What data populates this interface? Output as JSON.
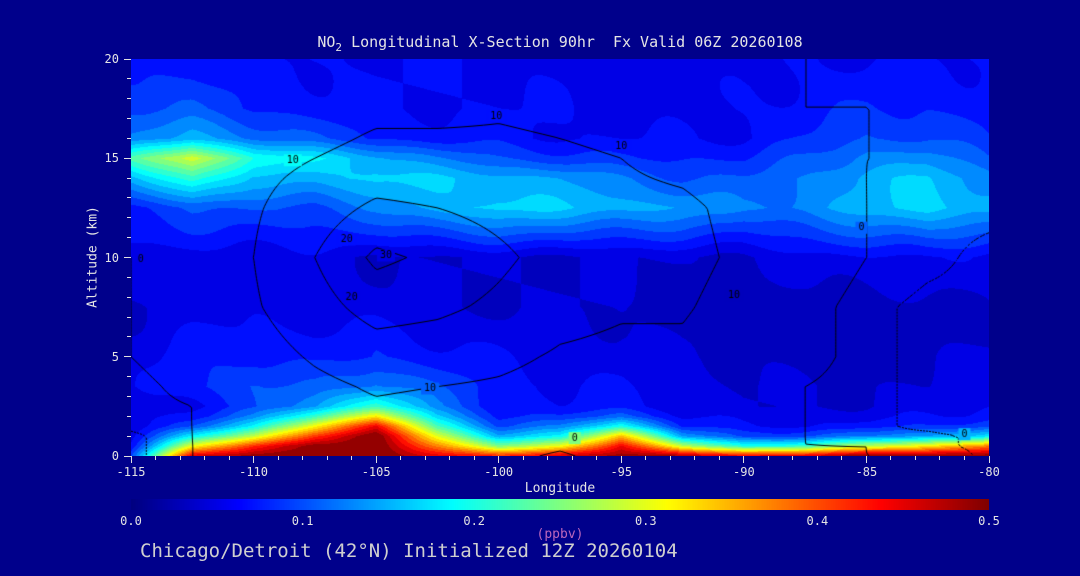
{
  "title": {
    "prefix": "NO",
    "sub": "2",
    "rest": " Longitudinal X-Section 90hr  Fx Valid 06Z 20260108",
    "full": "NO2 Longitudinal X-Section 90hr Fx Valid 06Z 20260108"
  },
  "footer": {
    "text": "Chicago/Detroit (42°N) Initialized 12Z 20260104"
  },
  "axes": {
    "x": {
      "label": "Longitude",
      "min": -115,
      "max": -80,
      "major_ticks": [
        -115,
        -110,
        -105,
        -100,
        -95,
        -90,
        -85,
        -80
      ],
      "major_labels": [
        "-115",
        "-110",
        "-105",
        "-100",
        "-95",
        "-90",
        "-85",
        "-80"
      ],
      "minor_step": 1
    },
    "y": {
      "label": "Altitude (km)",
      "min": 0,
      "max": 20,
      "major_ticks": [
        0,
        5,
        10,
        15,
        20
      ],
      "major_labels": [
        "0",
        "5",
        "10",
        "15",
        "20"
      ],
      "minor_step": 1
    }
  },
  "colorbar": {
    "min": 0.0,
    "max": 0.5,
    "tick_labels": [
      "0.0",
      "0.1",
      "0.2",
      "0.3",
      "0.4",
      "0.5"
    ],
    "units": "(ppbv)",
    "colormap": "jet"
  },
  "colors": {
    "background": "#00008b",
    "text": "#e4e4e4",
    "units_label": "#bb66bb",
    "footer": "#cfcfcf",
    "tick": "#e0e0e0",
    "contour": "#000000"
  },
  "chart_data": {
    "type": "heatmap",
    "title": "NO2 Longitudinal X-Section 90hr Fx Valid 06Z 20260108",
    "xlabel": "Longitude",
    "ylabel": "Altitude (km)",
    "xlim": [
      -115,
      -80
    ],
    "ylim": [
      0,
      20
    ],
    "units": "ppbv",
    "value_range": [
      0.0,
      0.5
    ],
    "lons": [
      -115,
      -112.5,
      -110,
      -107.5,
      -105,
      -102.5,
      -100,
      -97.5,
      -95,
      -92.5,
      -90,
      -87.5,
      -85,
      -82.5,
      -80
    ],
    "alts": [
      0,
      0.5,
      1,
      1.5,
      2,
      2.5,
      3.5,
      5,
      7.5,
      10,
      12.5,
      14,
      15,
      16,
      17.5,
      20
    ],
    "no2_ppbv": [
      [
        0.1,
        0.45,
        0.5,
        0.5,
        0.5,
        0.46,
        0.42,
        0.46,
        0.5,
        0.48,
        0.45,
        0.46,
        0.5,
        0.5,
        0.5
      ],
      [
        0.07,
        0.3,
        0.42,
        0.5,
        0.5,
        0.38,
        0.25,
        0.3,
        0.45,
        0.28,
        0.2,
        0.22,
        0.28,
        0.32,
        0.38
      ],
      [
        0.06,
        0.18,
        0.28,
        0.42,
        0.5,
        0.3,
        0.15,
        0.18,
        0.35,
        0.14,
        0.09,
        0.1,
        0.12,
        0.14,
        0.18
      ],
      [
        0.05,
        0.1,
        0.18,
        0.32,
        0.44,
        0.22,
        0.1,
        0.12,
        0.2,
        0.08,
        0.06,
        0.06,
        0.07,
        0.08,
        0.1
      ],
      [
        0.05,
        0.07,
        0.12,
        0.22,
        0.32,
        0.16,
        0.08,
        0.08,
        0.11,
        0.06,
        0.05,
        0.05,
        0.05,
        0.06,
        0.07
      ],
      [
        0.04,
        0.06,
        0.09,
        0.14,
        0.22,
        0.12,
        0.07,
        0.06,
        0.07,
        0.05,
        0.04,
        0.04,
        0.04,
        0.05,
        0.06
      ],
      [
        0.05,
        0.08,
        0.1,
        0.1,
        0.13,
        0.1,
        0.07,
        0.06,
        0.06,
        0.05,
        0.04,
        0.04,
        0.04,
        0.04,
        0.05
      ],
      [
        0.05,
        0.07,
        0.08,
        0.07,
        0.08,
        0.07,
        0.06,
        0.05,
        0.05,
        0.04,
        0.04,
        0.03,
        0.03,
        0.04,
        0.04
      ],
      [
        0.04,
        0.05,
        0.05,
        0.05,
        0.05,
        0.04,
        0.04,
        0.04,
        0.04,
        0.03,
        0.03,
        0.03,
        0.03,
        0.03,
        0.04
      ],
      [
        0.05,
        0.05,
        0.05,
        0.05,
        0.04,
        0.04,
        0.04,
        0.04,
        0.04,
        0.04,
        0.04,
        0.05,
        0.06,
        0.06,
        0.05
      ],
      [
        0.08,
        0.1,
        0.1,
        0.1,
        0.12,
        0.15,
        0.17,
        0.16,
        0.15,
        0.14,
        0.12,
        0.13,
        0.15,
        0.17,
        0.15
      ],
      [
        0.15,
        0.22,
        0.15,
        0.15,
        0.17,
        0.16,
        0.15,
        0.14,
        0.12,
        0.1,
        0.1,
        0.12,
        0.15,
        0.16,
        0.13
      ],
      [
        0.22,
        0.3,
        0.2,
        0.18,
        0.15,
        0.12,
        0.1,
        0.09,
        0.08,
        0.08,
        0.08,
        0.1,
        0.13,
        0.13,
        0.1
      ],
      [
        0.12,
        0.15,
        0.12,
        0.1,
        0.08,
        0.07,
        0.07,
        0.06,
        0.06,
        0.06,
        0.06,
        0.08,
        0.1,
        0.1,
        0.08
      ],
      [
        0.1,
        0.1,
        0.08,
        0.07,
        0.06,
        0.06,
        0.06,
        0.06,
        0.05,
        0.05,
        0.06,
        0.07,
        0.08,
        0.08,
        0.07
      ],
      [
        0.07,
        0.07,
        0.06,
        0.06,
        0.06,
        0.06,
        0.06,
        0.05,
        0.05,
        0.05,
        0.05,
        0.06,
        0.06,
        0.06,
        0.06
      ]
    ],
    "contour_overlay": {
      "levels_solid": [
        0,
        10,
        20,
        30
      ],
      "levels_dotted": [
        -1.5
      ],
      "values": [
        [
          -2,
          0,
          1,
          2,
          3,
          3,
          2,
          -1,
          3,
          2,
          1,
          1,
          0,
          0,
          -2
        ],
        [
          -2,
          0,
          1,
          3,
          4,
          4,
          3,
          1,
          4,
          2,
          1,
          0,
          0,
          -1,
          -2
        ],
        [
          -2,
          0,
          2,
          4,
          5,
          5,
          4,
          4,
          5,
          3,
          1,
          0,
          -1,
          -1,
          -2
        ],
        [
          -1,
          0,
          2,
          5,
          6,
          6,
          5,
          5,
          5,
          3,
          1,
          0,
          -1,
          -2,
          -3
        ],
        [
          -1,
          0,
          3,
          6,
          8,
          7,
          6,
          5,
          5,
          3,
          1,
          0,
          -1,
          -2,
          -3
        ],
        [
          -1,
          0,
          3,
          7,
          9,
          8,
          7,
          6,
          5,
          3,
          1,
          0,
          -1,
          -2,
          -2
        ],
        [
          -1,
          1,
          4,
          8,
          11,
          10,
          9,
          7,
          6,
          4,
          1,
          0,
          -1,
          -2,
          -2
        ],
        [
          0,
          2,
          6,
          11,
          15,
          14,
          12,
          9,
          8,
          8,
          4,
          1,
          -1,
          -2,
          -2
        ],
        [
          0,
          3,
          9,
          16,
          24,
          22,
          18,
          13,
          11,
          11,
          6,
          1,
          -1,
          -2,
          -2
        ],
        [
          0,
          4,
          10,
          20,
          32,
          28,
          22,
          16,
          14,
          13,
          8,
          2,
          0,
          -1,
          -2
        ],
        [
          1,
          4,
          9,
          15,
          22,
          20,
          17,
          14,
          13,
          12,
          7,
          2,
          0,
          -1,
          -1
        ],
        [
          1,
          4,
          8,
          12,
          16,
          15,
          14,
          12,
          11,
          9,
          5,
          1,
          0,
          -1,
          -1
        ],
        [
          2,
          4,
          7,
          10,
          13,
          13,
          12,
          11,
          10,
          7,
          4,
          1,
          0,
          0,
          -1
        ],
        [
          2,
          4,
          6,
          8,
          11,
          11,
          11,
          10,
          9,
          6,
          3,
          1,
          0,
          0,
          -1
        ],
        [
          2,
          3,
          5,
          6,
          8,
          8,
          9,
          8,
          7,
          5,
          2,
          0,
          0,
          0,
          -1
        ],
        [
          1,
          2,
          3,
          4,
          5,
          5,
          6,
          6,
          5,
          3,
          1,
          0,
          0,
          0,
          -1
        ]
      ],
      "labels": [
        {
          "text": "0",
          "lon": -114.6,
          "alt": 9.9
        },
        {
          "text": "10",
          "lon": -108.4,
          "alt": 14.9
        },
        {
          "text": "10",
          "lon": -100.1,
          "alt": 17.1
        },
        {
          "text": "10",
          "lon": -95.0,
          "alt": 15.6
        },
        {
          "text": "20",
          "lon": -106.2,
          "alt": 10.9
        },
        {
          "text": "30",
          "lon": -104.6,
          "alt": 10.1
        },
        {
          "text": "20",
          "lon": -106.0,
          "alt": 8.0
        },
        {
          "text": "10",
          "lon": -102.8,
          "alt": 3.4
        },
        {
          "text": "10",
          "lon": -90.4,
          "alt": 8.1
        },
        {
          "text": "0",
          "lon": -96.9,
          "alt": 0.9
        },
        {
          "text": "0",
          "lon": -85.2,
          "alt": 11.5
        },
        {
          "text": "0",
          "lon": -81.0,
          "alt": 1.1
        }
      ]
    }
  }
}
